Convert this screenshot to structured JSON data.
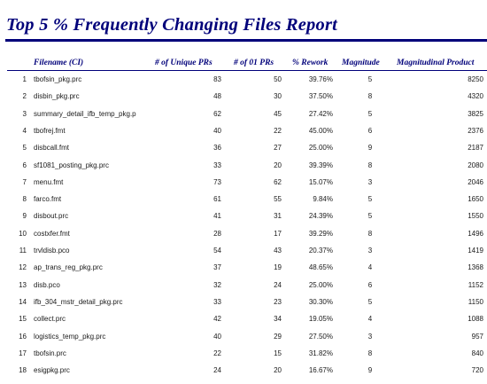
{
  "report": {
    "title": "Top 5 % Frequently Changing Files Report"
  },
  "columns": {
    "filename": "Filename (CI)",
    "unique_prs": "# of Unique PRs",
    "prs_01": "# of 01 PRs",
    "rework": "% Rework",
    "magnitude": "Magnitude",
    "mag_product": "Magnitudinal Product"
  },
  "rows": [
    {
      "num": "1",
      "file": "tbofsin_pkg.prc",
      "unique": "83",
      "prs01": "50",
      "rework": "39.76%",
      "mag": "5",
      "product": "8250"
    },
    {
      "num": "2",
      "file": "disbin_pkg.prc",
      "unique": "48",
      "prs01": "30",
      "rework": "37.50%",
      "mag": "8",
      "product": "4320"
    },
    {
      "num": "3",
      "file": "summary_detail_ifb_temp_pkg.p",
      "unique": "62",
      "prs01": "45",
      "rework": "27.42%",
      "mag": "5",
      "product": "3825"
    },
    {
      "num": "4",
      "file": "tbofrej.fmt",
      "unique": "40",
      "prs01": "22",
      "rework": "45.00%",
      "mag": "6",
      "product": "2376"
    },
    {
      "num": "5",
      "file": "disbcall.fmt",
      "unique": "36",
      "prs01": "27",
      "rework": "25.00%",
      "mag": "9",
      "product": "2187"
    },
    {
      "num": "6",
      "file": "sf1081_posting_pkg.prc",
      "unique": "33",
      "prs01": "20",
      "rework": "39.39%",
      "mag": "8",
      "product": "2080"
    },
    {
      "num": "7",
      "file": "menu.fmt",
      "unique": "73",
      "prs01": "62",
      "rework": "15.07%",
      "mag": "3",
      "product": "2046"
    },
    {
      "num": "8",
      "file": "farco.fmt",
      "unique": "61",
      "prs01": "55",
      "rework": "9.84%",
      "mag": "5",
      "product": "1650"
    },
    {
      "num": "9",
      "file": "disbout.prc",
      "unique": "41",
      "prs01": "31",
      "rework": "24.39%",
      "mag": "5",
      "product": "1550"
    },
    {
      "num": "10",
      "file": "costxfer.fmt",
      "unique": "28",
      "prs01": "17",
      "rework": "39.29%",
      "mag": "8",
      "product": "1496"
    },
    {
      "num": "11",
      "file": "trvldisb.pco",
      "unique": "54",
      "prs01": "43",
      "rework": "20.37%",
      "mag": "3",
      "product": "1419"
    },
    {
      "num": "12",
      "file": "ap_trans_reg_pkg.prc",
      "unique": "37",
      "prs01": "19",
      "rework": "48.65%",
      "mag": "4",
      "product": "1368"
    },
    {
      "num": "13",
      "file": "disb.pco",
      "unique": "32",
      "prs01": "24",
      "rework": "25.00%",
      "mag": "6",
      "product": "1152"
    },
    {
      "num": "14",
      "file": "ifb_304_mstr_detail_pkg.prc",
      "unique": "33",
      "prs01": "23",
      "rework": "30.30%",
      "mag": "5",
      "product": "1150"
    },
    {
      "num": "15",
      "file": "collect.prc",
      "unique": "42",
      "prs01": "34",
      "rework": "19.05%",
      "mag": "4",
      "product": "1088"
    },
    {
      "num": "16",
      "file": "logistics_temp_pkg.prc",
      "unique": "40",
      "prs01": "29",
      "rework": "27.50%",
      "mag": "3",
      "product": "957"
    },
    {
      "num": "17",
      "file": "tbofsin.prc",
      "unique": "22",
      "prs01": "15",
      "rework": "31.82%",
      "mag": "8",
      "product": "840"
    },
    {
      "num": "18",
      "file": "esigpkg.prc",
      "unique": "24",
      "prs01": "20",
      "rework": "16.67%",
      "mag": "9",
      "product": "720"
    }
  ]
}
